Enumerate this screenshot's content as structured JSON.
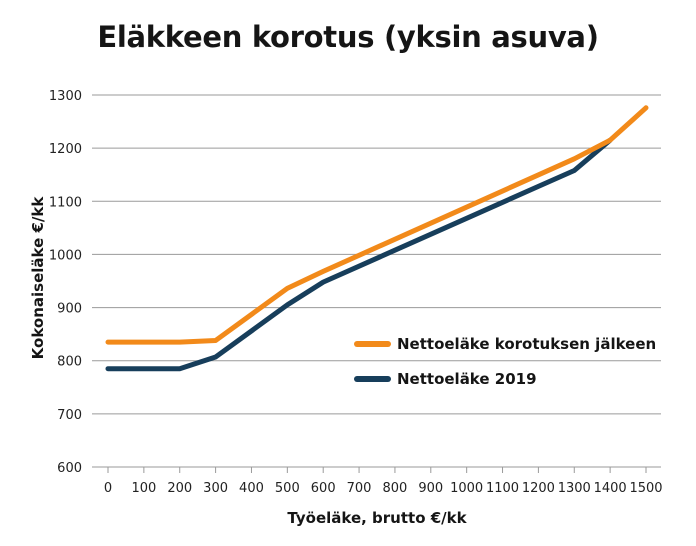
{
  "chart_data": {
    "type": "line",
    "title": "Eläkkeen korotus (yksin asuva)",
    "xlabel": "Työeläke, brutto €/kk",
    "ylabel": "Kokonaiseläke €/kk",
    "x": [
      0,
      100,
      200,
      300,
      400,
      500,
      600,
      700,
      800,
      900,
      1000,
      1100,
      1200,
      1300,
      1400,
      1500
    ],
    "x_ticks": [
      "0",
      "100",
      "200",
      "300",
      "400",
      "500",
      "600",
      "700",
      "800",
      "900",
      "1000",
      "1100",
      "1200",
      "1300",
      "1400",
      "1500"
    ],
    "y_ticks": [
      "600",
      "700",
      "800",
      "900",
      "1000",
      "1100",
      "1200",
      "1300"
    ],
    "xlim": [
      0,
      1500
    ],
    "ylim": [
      600,
      1300
    ],
    "grid": "horizontal",
    "legend_position": "right",
    "series": [
      {
        "name": "Nettoeläke korotuksen jälkeen",
        "color": "#f28a1a",
        "x": [
          0,
          200,
          300,
          500,
          600,
          1300,
          1400,
          1500
        ],
        "values": [
          835,
          835,
          838,
          936,
          968,
          1180,
          1215,
          1276
        ]
      },
      {
        "name": "Nettoeläke 2019",
        "color": "#173e5b",
        "x": [
          0,
          200,
          300,
          500,
          600,
          1200,
          1300,
          1400
        ],
        "values": [
          785,
          785,
          807,
          905,
          948,
          1128,
          1158,
          1215
        ]
      }
    ]
  }
}
